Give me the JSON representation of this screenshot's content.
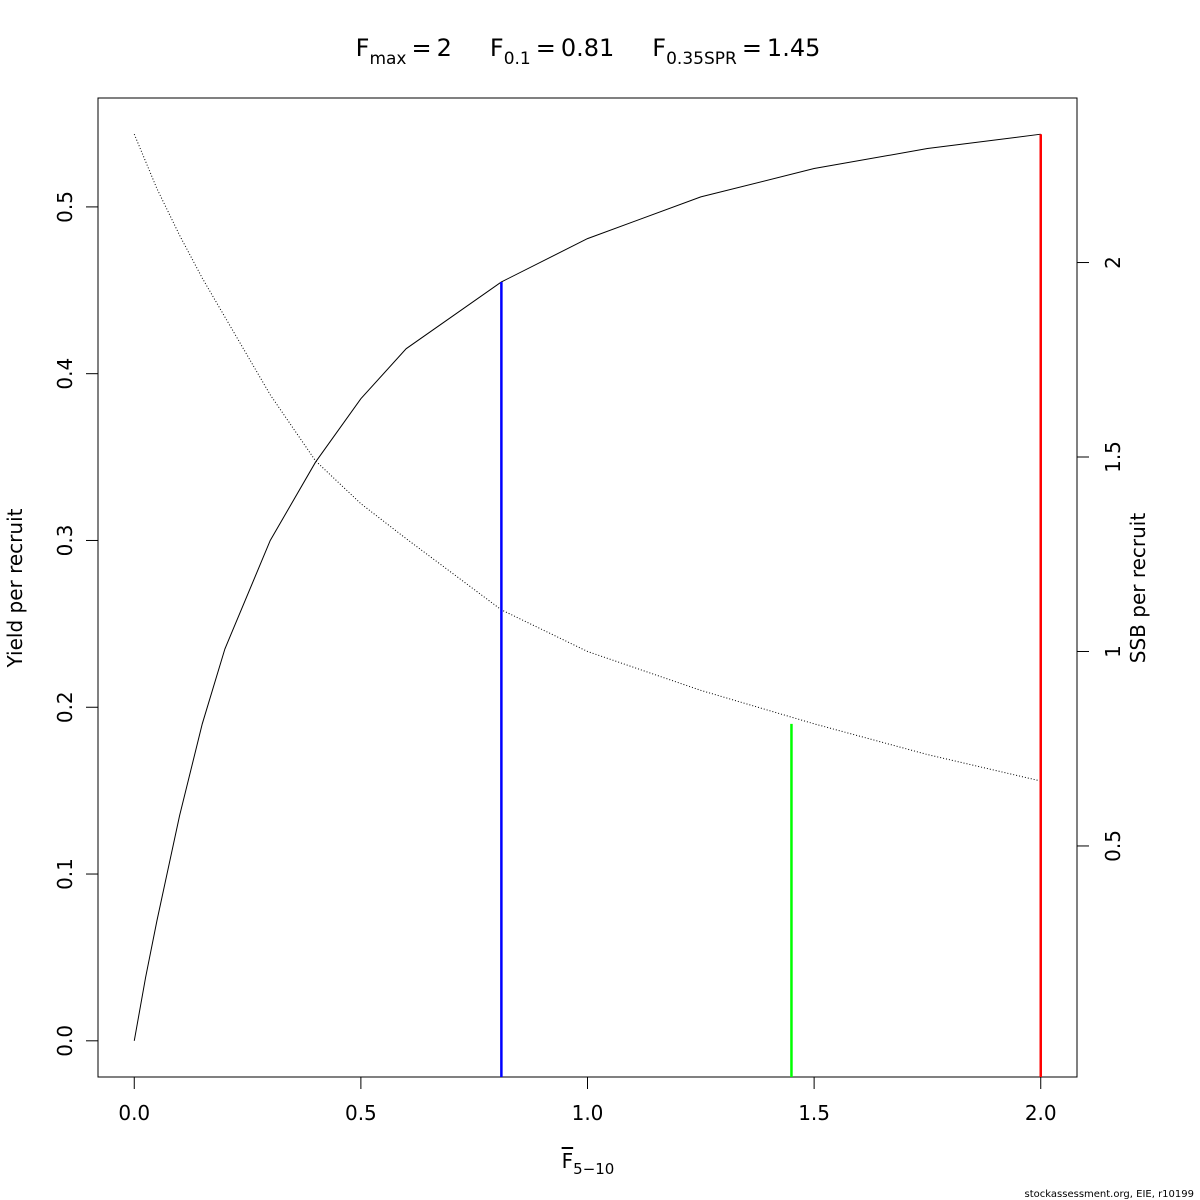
{
  "chart_data": {
    "type": "line",
    "reference_points": [
      {
        "name": "F",
        "subscript": "max",
        "relation": "=",
        "value": 2,
        "top": 0.5436,
        "axis": "y",
        "color": "#ff0000"
      },
      {
        "name": "F",
        "subscript": "0.1",
        "relation": "=",
        "value": 0.81,
        "top": 0.455,
        "axis": "y",
        "color": "#0000ff"
      },
      {
        "name": "F",
        "subscript": "0.35SPR",
        "relation": "=",
        "value": 1.45,
        "top": 0.814,
        "axis": "y2",
        "color": "#00ff00"
      }
    ],
    "xlabel": {
      "text": "F",
      "subscript": "5−10"
    },
    "ylabel": "Yield per recruit",
    "y2label": "SSB per recruit",
    "footer": "stockassessment.org, EIE, r10199",
    "x": [
      0,
      0.025,
      0.05,
      0.1,
      0.15,
      0.2,
      0.3,
      0.4,
      0.5,
      0.6,
      0.81,
      1.0,
      1.25,
      1.5,
      1.75,
      2
    ],
    "series": [
      {
        "color": "#000000",
        "axis": "y",
        "dash": "solid",
        "values": [
          0,
          0.038,
          0.072,
          0.135,
          0.19,
          0.235,
          0.3,
          0.347,
          0.385,
          0.415,
          0.455,
          0.481,
          0.506,
          0.523,
          0.535,
          0.5436
        ]
      },
      {
        "color": "#000000",
        "axis": "y2",
        "dash": "dotted",
        "values": [
          2.33,
          2.26,
          2.19,
          2.07,
          1.96,
          1.86,
          1.66,
          1.49,
          1.38,
          1.29,
          1.107,
          1.0,
          0.9,
          0.814,
          0.735,
          0.667
        ]
      }
    ],
    "xlim": [
      -0.08,
      2.08
    ],
    "xticks": [
      {
        "value": 0,
        "label": "0.0"
      },
      0.5,
      {
        "value": 1,
        "label": "1.0"
      },
      1.5,
      {
        "value": 2,
        "label": "2.0"
      }
    ],
    "ylim": [
      -0.0217,
      0.5653
    ],
    "yticks": [
      {
        "value": 0,
        "label": "0.0"
      },
      0.1,
      0.2,
      0.3,
      0.4,
      0.5
    ],
    "y2lim": [
      -0.094,
      2.423
    ],
    "y2ticks": [
      0.5,
      1,
      1.5,
      2
    ]
  }
}
